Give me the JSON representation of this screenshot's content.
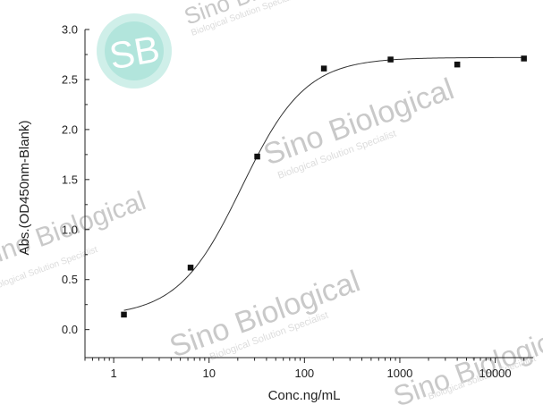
{
  "chart_data": {
    "type": "scatter",
    "xlabel": "Conc.ng/mL",
    "ylabel": "Abs.(OD450nm-Blank)",
    "xscale": "log",
    "xlim": [
      0.5,
      25000
    ],
    "ylim": [
      -0.28,
      3.0
    ],
    "x_ticks": [
      1,
      10,
      100,
      1000,
      10000
    ],
    "x_tick_labels": [
      "1",
      "10",
      "100",
      "1000",
      "10000"
    ],
    "y_ticks": [
      0.0,
      0.5,
      1.0,
      1.5,
      2.0,
      2.5,
      3.0
    ],
    "y_tick_labels": [
      "0.0",
      "0.5",
      "1.0",
      "1.5",
      "2.0",
      "2.5",
      "3.0"
    ],
    "grid": false,
    "legend": "none",
    "series": [
      {
        "marker": "square",
        "color": "#111111",
        "points": [
          {
            "x": 1.28,
            "y": 0.15
          },
          {
            "x": 6.4,
            "y": 0.62
          },
          {
            "x": 32,
            "y": 1.73
          },
          {
            "x": 160,
            "y": 2.61
          },
          {
            "x": 800,
            "y": 2.7
          },
          {
            "x": 4000,
            "y": 2.65
          },
          {
            "x": 20000,
            "y": 2.71
          }
        ]
      }
    ],
    "fit_curve": {
      "type": "4PL",
      "bottom": 0.13,
      "top": 2.72,
      "ec50": 22,
      "hill": 1.3,
      "color": "#333333"
    }
  },
  "watermark": {
    "logo_text": "SB",
    "logo_color": "#7fd3c8",
    "brand": "Sino Biological",
    "tagline": "Biological Solution Specialist"
  }
}
